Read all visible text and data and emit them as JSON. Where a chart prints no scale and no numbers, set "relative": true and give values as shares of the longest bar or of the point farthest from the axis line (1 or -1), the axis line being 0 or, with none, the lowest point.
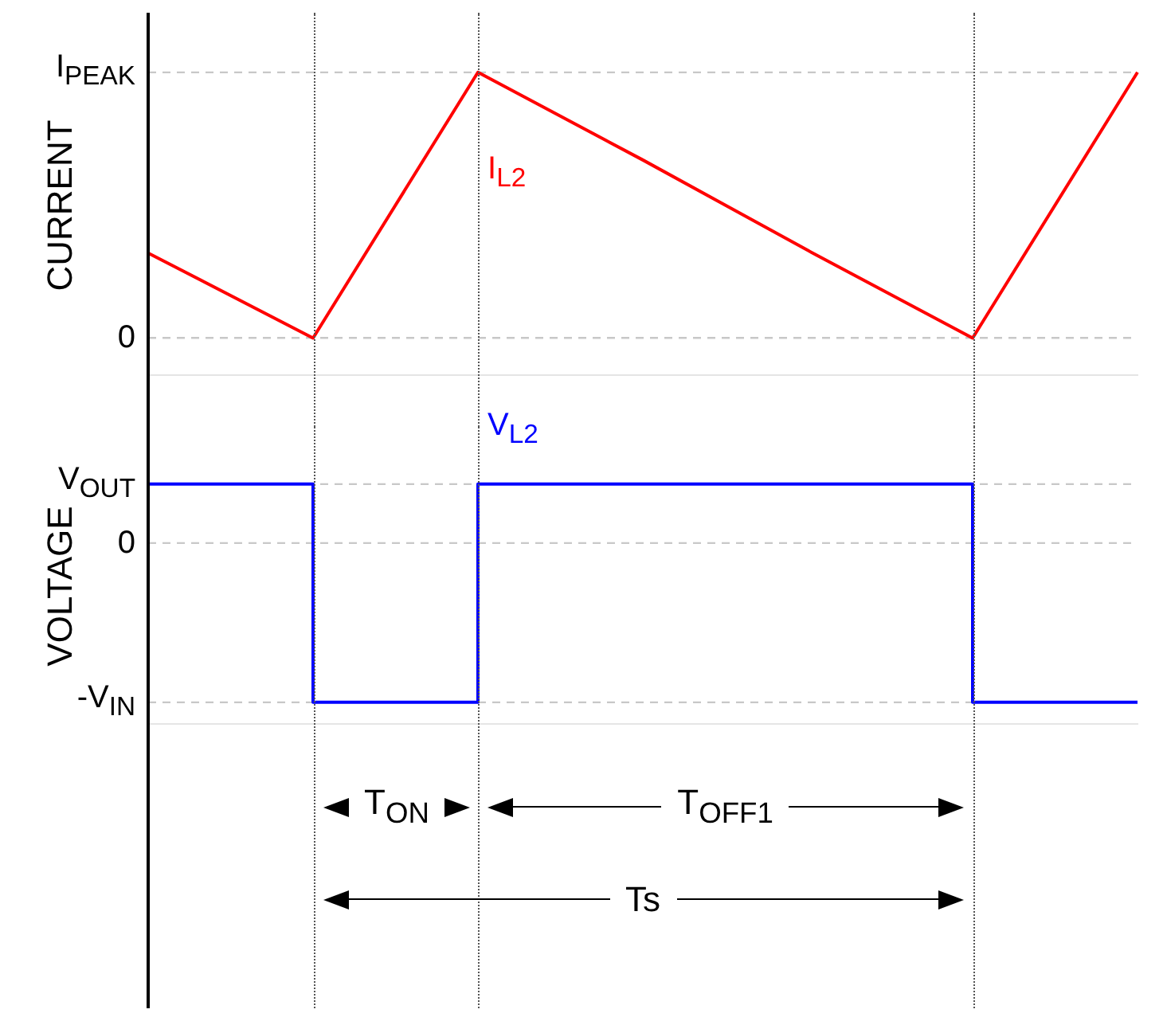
{
  "chart_data": [
    {
      "type": "line",
      "ylabel": "CURRENT",
      "categories": [
        null,
        null,
        null,
        null,
        null,
        null,
        null
      ],
      "relative": true,
      "series": [
        {
          "name": "I$_{L2}$",
          "color": "#ff0000",
          "values": [
            0.32,
            0,
            1,
            0.67,
            0.33,
            0,
            1
          ]
        }
      ],
      "grid": true,
      "ref_lines": [
        {
          "axis": "y",
          "value": 0,
          "label": "0",
          "color": "#c8c8c8",
          "line_style": "dashed"
        },
        {
          "axis": "y",
          "value": 1,
          "label": "I$_{PEAK}$",
          "color": "#c8c8c8",
          "line_style": "dashed"
        }
      ]
    },
    {
      "type": "step",
      "ylabel": "VOLTAGE",
      "categories": [
        null,
        null,
        null,
        null,
        null,
        null,
        null
      ],
      "relative": true,
      "series": [
        {
          "name": "V$_{L2}$",
          "color": "#0000ff",
          "values": [
            0.37,
            -1,
            0.37,
            0.37,
            0.37,
            -1,
            -1
          ]
        }
      ],
      "grid": true,
      "ref_lines": [
        {
          "axis": "y",
          "value": -1,
          "label": "-V$_{IN}$",
          "color": "#c8c8c8",
          "line_style": "dashed"
        },
        {
          "axis": "y",
          "value": 0,
          "label": "0",
          "color": "#c8c8c8",
          "line_style": "dashed"
        },
        {
          "axis": "y",
          "value": 0.37,
          "label": "V$_{OUT}$",
          "color": "#c8c8c8",
          "line_style": "dashed"
        }
      ],
      "annotations": [
        "T$_{ON}$",
        "T$_{OFF1}$",
        "Ts"
      ]
    }
  ]
}
